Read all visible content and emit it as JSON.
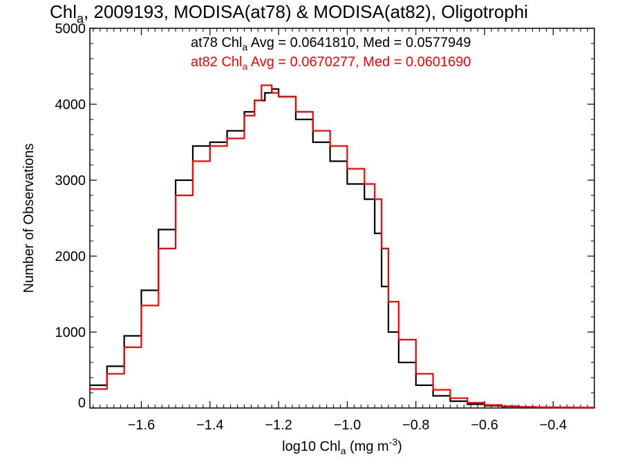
{
  "chart_data": {
    "type": "line",
    "title": "Chla, 2009193, MODISA(at78) & MODISA(at82), Oligotrophi",
    "title_parts": {
      "a": "Chl",
      "b": "a",
      "c": ", 2009193, MODISA(at78) & MODISA(at82), Oligotrophi"
    },
    "xlabel": "log10 Chla (mg m-3)",
    "xlabel_parts": {
      "a": "log10 Chl",
      "b": "a",
      "c": " (mg m",
      "d": "-3",
      "e": ")"
    },
    "ylabel": "Number of Observations",
    "xlim": [
      -1.75,
      -0.28
    ],
    "ylim": [
      0,
      5000
    ],
    "x_ticks": [
      "-1.6",
      "-1.4",
      "-1.2",
      "-1.0",
      "-0.8",
      "-0.6",
      "-0.4"
    ],
    "y_ticks": [
      "0",
      "1000",
      "2000",
      "3000",
      "4000",
      "5000"
    ],
    "legend": {
      "placement": "top-center"
    },
    "series": [
      {
        "name": "at78",
        "color": "#000000",
        "label_parts": {
          "a": "at78 Chl",
          "b": "a",
          "c": " Avg = 0.0641810, Med = 0.0577949"
        },
        "x": [
          -1.75,
          -1.7,
          -1.65,
          -1.6,
          -1.55,
          -1.5,
          -1.45,
          -1.4,
          -1.35,
          -1.3,
          -1.27,
          -1.24,
          -1.22,
          -1.2,
          -1.15,
          -1.1,
          -1.05,
          -1.0,
          -0.95,
          -0.92,
          -0.9,
          -0.88,
          -0.85,
          -0.8,
          -0.75,
          -0.7,
          -0.65,
          -0.6,
          -0.55,
          -0.5,
          -0.45,
          -0.4,
          -0.35,
          -0.28
        ],
        "values": [
          300,
          550,
          950,
          1550,
          2350,
          3000,
          3450,
          3500,
          3650,
          3900,
          4050,
          4150,
          4200,
          4100,
          3800,
          3500,
          3250,
          2950,
          2750,
          2300,
          1600,
          1000,
          600,
          300,
          160,
          90,
          50,
          30,
          20,
          10,
          8,
          6,
          5,
          3
        ]
      },
      {
        "name": "at82",
        "color": "#ff0000",
        "label_parts": {
          "a": "at82 Chl",
          "b": "a",
          "c": " Avg = 0.0670277, Med = 0.0601690"
        },
        "x": [
          -1.75,
          -1.7,
          -1.65,
          -1.6,
          -1.55,
          -1.5,
          -1.45,
          -1.4,
          -1.35,
          -1.3,
          -1.27,
          -1.25,
          -1.22,
          -1.2,
          -1.15,
          -1.1,
          -1.05,
          -1.0,
          -0.95,
          -0.92,
          -0.9,
          -0.88,
          -0.85,
          -0.8,
          -0.75,
          -0.7,
          -0.65,
          -0.6,
          -0.55,
          -0.5,
          -0.45,
          -0.4,
          -0.35,
          -0.28
        ],
        "values": [
          250,
          450,
          800,
          1350,
          2100,
          2800,
          3250,
          3450,
          3550,
          3850,
          4050,
          4250,
          4150,
          4100,
          3900,
          3650,
          3450,
          3150,
          2950,
          2750,
          2100,
          1400,
          900,
          450,
          240,
          130,
          70,
          40,
          25,
          15,
          10,
          8,
          6,
          4
        ]
      }
    ]
  }
}
